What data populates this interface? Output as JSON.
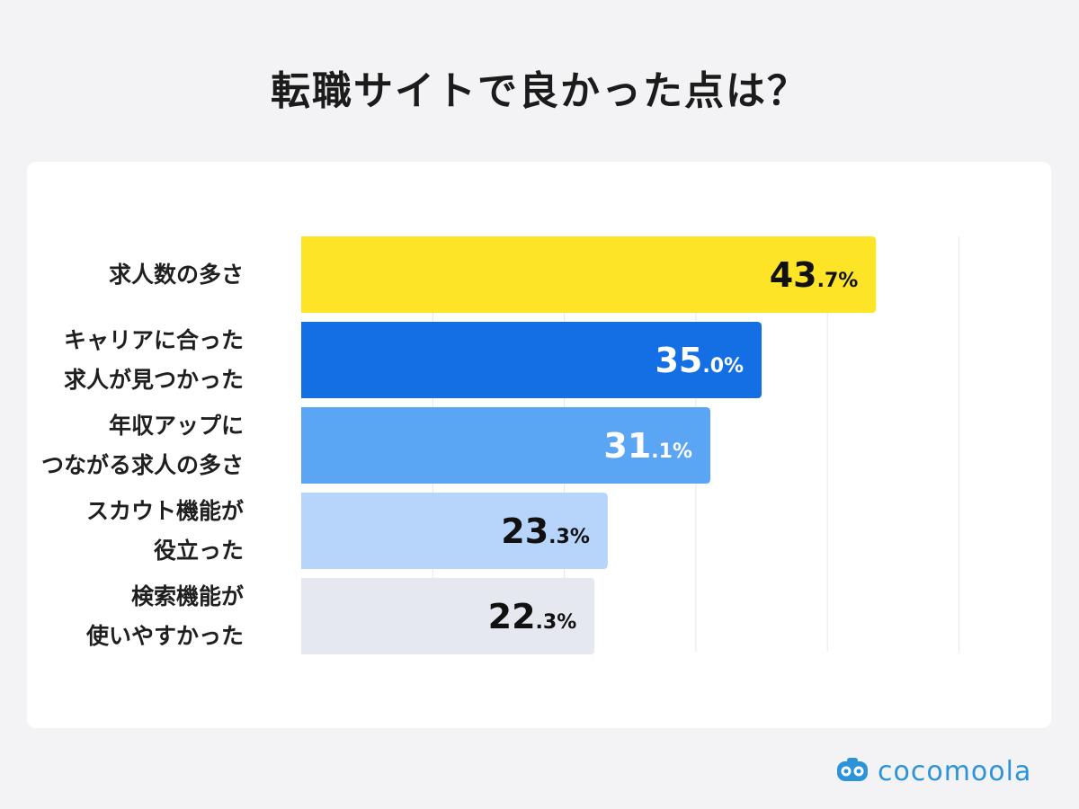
{
  "title": "転職サイトで良かった点は？",
  "chart_data": {
    "type": "bar",
    "orientation": "horizontal",
    "categories": [
      [
        "求人数の多さ"
      ],
      [
        "キャリアに合った",
        "求人が見つかった"
      ],
      [
        "年収アップに",
        "つながる求人の多さ"
      ],
      [
        "スカウト機能が",
        "役立った"
      ],
      [
        "検索機能が",
        "使いやすかった"
      ]
    ],
    "values": [
      43.7,
      35.0,
      31.1,
      23.3,
      22.3
    ],
    "value_labels": [
      {
        "int": "43",
        "dec": ".7%"
      },
      {
        "int": "35",
        "dec": ".0%"
      },
      {
        "int": "31",
        "dec": ".1%"
      },
      {
        "int": "23",
        "dec": ".3%"
      },
      {
        "int": "22",
        "dec": ".3%"
      }
    ],
    "bar_colors": [
      "#fde427",
      "#156fe4",
      "#5aa6f4",
      "#b7d5fb",
      "#e6e8f0"
    ],
    "label_colors": [
      "#111111",
      "#ffffff",
      "#ffffff",
      "#111111",
      "#111111"
    ],
    "xlim": [
      0,
      50
    ],
    "grid": true,
    "unit": "%"
  },
  "brand": {
    "name": "cocomoola",
    "color": "#2d93d8"
  }
}
